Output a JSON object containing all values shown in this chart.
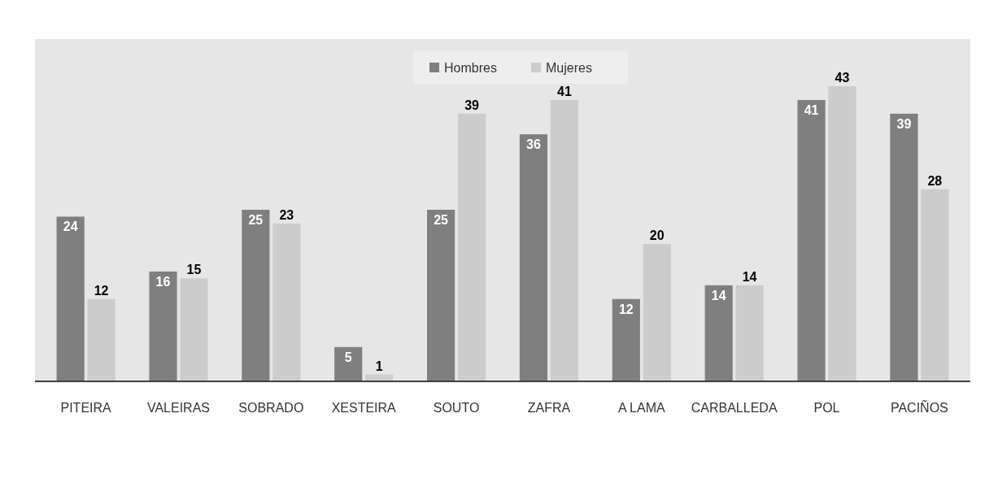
{
  "chart_data": {
    "type": "bar",
    "categories": [
      "PITEIRA",
      "VALEIRAS",
      "SOBRADO",
      "XESTEIRA",
      "SOUTO",
      "ZAFRA",
      "A LAMA",
      "CARBALLEDA",
      "POL",
      "PACIÑOS"
    ],
    "series": [
      {
        "name": "Hombres",
        "color": "#7f7f7f",
        "values": [
          24,
          16,
          25,
          5,
          25,
          36,
          12,
          14,
          41,
          39
        ]
      },
      {
        "name": "Mujeres",
        "color": "#cccccc",
        "values": [
          12,
          15,
          23,
          1,
          39,
          41,
          20,
          14,
          43,
          28
        ]
      }
    ],
    "data_labels": true,
    "legend": "top",
    "grid": false
  }
}
